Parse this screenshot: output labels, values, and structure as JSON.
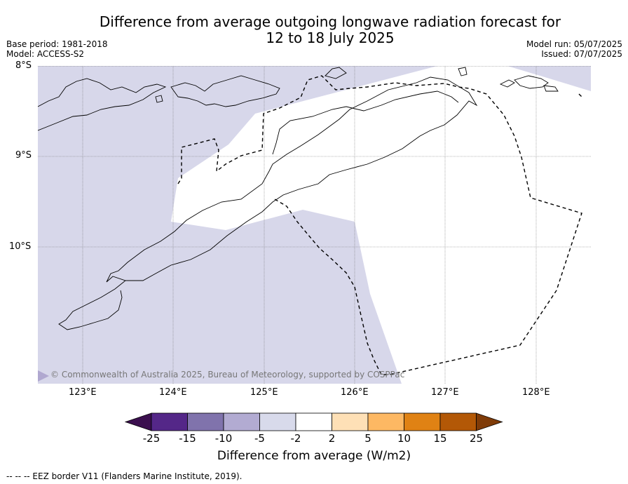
{
  "header": {
    "title_line1": "Difference from average outgoing longwave radiation forecast for",
    "title_line2": "12 to 18 July 2025",
    "base_period": "Base period: 1981-2018",
    "model": "Model: ACCESS-S2",
    "model_run": "Model run: 05/07/2025",
    "issued": "Issued: 07/07/2025"
  },
  "map": {
    "lat_labels": [
      "8°S",
      "9°S",
      "10°S"
    ],
    "lon_labels": [
      "123°E",
      "124°E",
      "125°E",
      "126°E",
      "127°E",
      "128°E"
    ],
    "copyright": "© Commonwealth of Australia 2025, Bureau of Meteorology, supported by COSPPac",
    "shade_color": "#d7d7ea"
  },
  "colorbar": {
    "tick_labels": [
      "-25",
      "-15",
      "-10",
      "-5",
      "-2",
      "2",
      "5",
      "10",
      "15",
      "25"
    ],
    "colors": [
      "#3b0f4f",
      "#542788",
      "#8073ac",
      "#b2abd2",
      "#d8daeb",
      "#ffffff",
      "#fee0b6",
      "#fdb863",
      "#e08214",
      "#b35806",
      "#7f3b08"
    ],
    "label": "Difference from average (W/m2)"
  },
  "footer": {
    "eez_note": "--  --  -- EEZ border V11 (Flanders Marine Institute, 2019)."
  }
}
